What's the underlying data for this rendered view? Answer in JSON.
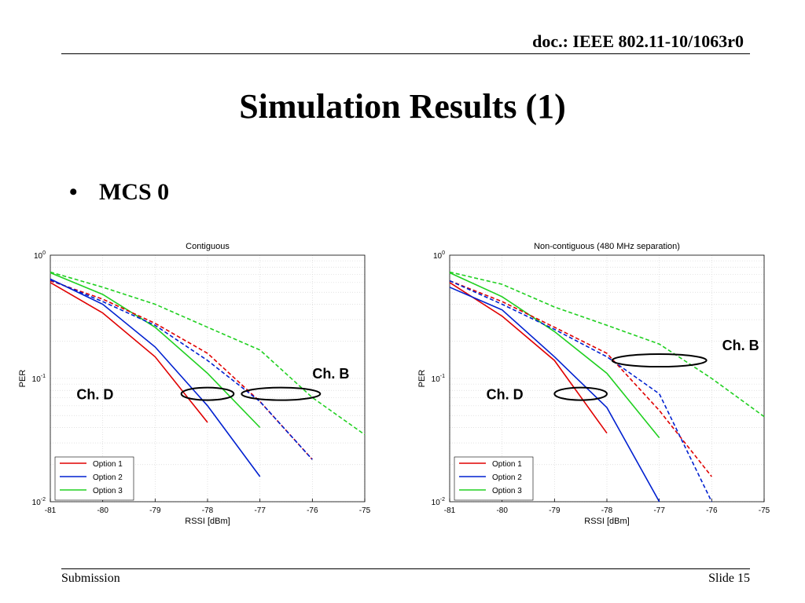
{
  "header": {
    "doc_id": "doc.: IEEE 802.11-10/1063r0"
  },
  "slide": {
    "title": "Simulation Results (1)",
    "bullet": "MCS 0"
  },
  "footer": {
    "left": "Submission",
    "right": "Slide 15"
  },
  "chart_data": [
    {
      "type": "line",
      "title": "Contiguous",
      "xlabel": "RSSI [dBm]",
      "ylabel": "PER",
      "xlim": [
        -81,
        -75
      ],
      "ylim": [
        0.01,
        1
      ],
      "yscale": "log",
      "xticks": [
        "-81",
        "-80",
        "-79",
        "-78",
        "-77",
        "-76",
        "-75"
      ],
      "yticks": [
        {
          "base": "10",
          "exp": "0",
          "value": 1
        },
        {
          "base": "10",
          "exp": "-1",
          "value": 0.1
        },
        {
          "base": "10",
          "exp": "-2",
          "value": 0.01
        }
      ],
      "grid": true,
      "legend_position": "bottom-left",
      "series": [
        {
          "name": "Option 1",
          "color": "#e00000",
          "dash": "solid",
          "x": [
            -81,
            -80,
            -79,
            -78
          ],
          "y": [
            0.6,
            0.34,
            0.15,
            0.044
          ]
        },
        {
          "name": "Option 2",
          "color": "#0020d0",
          "dash": "solid",
          "x": [
            -81,
            -80,
            -79,
            -78,
            -77
          ],
          "y": [
            0.64,
            0.4,
            0.18,
            0.06,
            0.016
          ]
        },
        {
          "name": "Option 3",
          "color": "#20d020",
          "dash": "solid",
          "x": [
            -81,
            -80,
            -79,
            -78,
            -77
          ],
          "y": [
            0.72,
            0.48,
            0.26,
            0.11,
            0.04
          ]
        },
        {
          "name": "",
          "color": "#e00000",
          "dash": "dashed",
          "x": [
            -81,
            -80,
            -79,
            -78,
            -77,
            -76
          ],
          "y": [
            0.62,
            0.44,
            0.28,
            0.16,
            0.065,
            0.022
          ]
        },
        {
          "name": "",
          "color": "#0020d0",
          "dash": "dashed",
          "x": [
            -81,
            -80,
            -79,
            -78,
            -77,
            -76
          ],
          "y": [
            0.63,
            0.42,
            0.27,
            0.14,
            0.065,
            0.022
          ]
        },
        {
          "name": "",
          "color": "#20d020",
          "dash": "dashed",
          "x": [
            -81,
            -80,
            -79,
            -78,
            -77,
            -76,
            -75
          ],
          "y": [
            0.73,
            0.55,
            0.4,
            0.26,
            0.17,
            0.07,
            0.035
          ]
        }
      ],
      "annotations": [
        {
          "label": "Ch. D",
          "ellipse_x": -78,
          "ellipse_y": 0.075,
          "ellipse_rx": 0.5,
          "label_x": -80.5,
          "label_y": 0.068
        },
        {
          "label": "Ch. B",
          "ellipse_x": -76.6,
          "ellipse_y": 0.075,
          "ellipse_rx": 0.75,
          "label_x": -76,
          "label_y": 0.1
        }
      ]
    },
    {
      "type": "line",
      "title": "Non-contiguous (480 MHz separation)",
      "xlabel": "RSSI [dBm]",
      "ylabel": "PER",
      "xlim": [
        -81,
        -75
      ],
      "ylim": [
        0.01,
        1
      ],
      "yscale": "log",
      "xticks": [
        "-81",
        "-80",
        "-79",
        "-78",
        "-77",
        "-76",
        "-75"
      ],
      "yticks": [
        {
          "base": "10",
          "exp": "0",
          "value": 1
        },
        {
          "base": "10",
          "exp": "-1",
          "value": 0.1
        },
        {
          "base": "10",
          "exp": "-2",
          "value": 0.01
        }
      ],
      "grid": true,
      "legend_position": "bottom-left",
      "series": [
        {
          "name": "Option 1",
          "color": "#e00000",
          "dash": "solid",
          "x": [
            -81,
            -80,
            -79,
            -78
          ],
          "y": [
            0.6,
            0.32,
            0.14,
            0.036
          ]
        },
        {
          "name": "Option 2",
          "color": "#0020d0",
          "dash": "solid",
          "x": [
            -81,
            -80,
            -79,
            -78,
            -77
          ],
          "y": [
            0.55,
            0.36,
            0.15,
            0.058,
            0.01
          ]
        },
        {
          "name": "Option 3",
          "color": "#20d020",
          "dash": "solid",
          "x": [
            -81,
            -80,
            -79,
            -78,
            -77
          ],
          "y": [
            0.72,
            0.46,
            0.24,
            0.11,
            0.033
          ]
        },
        {
          "name": "",
          "color": "#e00000",
          "dash": "dashed",
          "x": [
            -81,
            -80,
            -79,
            -78,
            -77,
            -76
          ],
          "y": [
            0.62,
            0.42,
            0.26,
            0.16,
            0.055,
            0.016
          ]
        },
        {
          "name": "",
          "color": "#0020d0",
          "dash": "dashed",
          "x": [
            -81,
            -80,
            -79,
            -78,
            -77,
            -76
          ],
          "y": [
            0.62,
            0.4,
            0.25,
            0.15,
            0.075,
            0.01
          ]
        },
        {
          "name": "",
          "color": "#20d020",
          "dash": "dashed",
          "x": [
            -81,
            -80,
            -79,
            -78,
            -77,
            -76,
            -75
          ],
          "y": [
            0.73,
            0.58,
            0.38,
            0.27,
            0.19,
            0.1,
            0.049
          ]
        }
      ],
      "annotations": [
        {
          "label": "Ch. D",
          "ellipse_x": -78.5,
          "ellipse_y": 0.075,
          "ellipse_rx": 0.5,
          "label_x": -80.3,
          "label_y": 0.068
        },
        {
          "label": "Ch. B",
          "ellipse_x": -77,
          "ellipse_y": 0.14,
          "ellipse_rx": 0.9,
          "label_x": -75.8,
          "label_y": 0.17
        }
      ]
    }
  ]
}
